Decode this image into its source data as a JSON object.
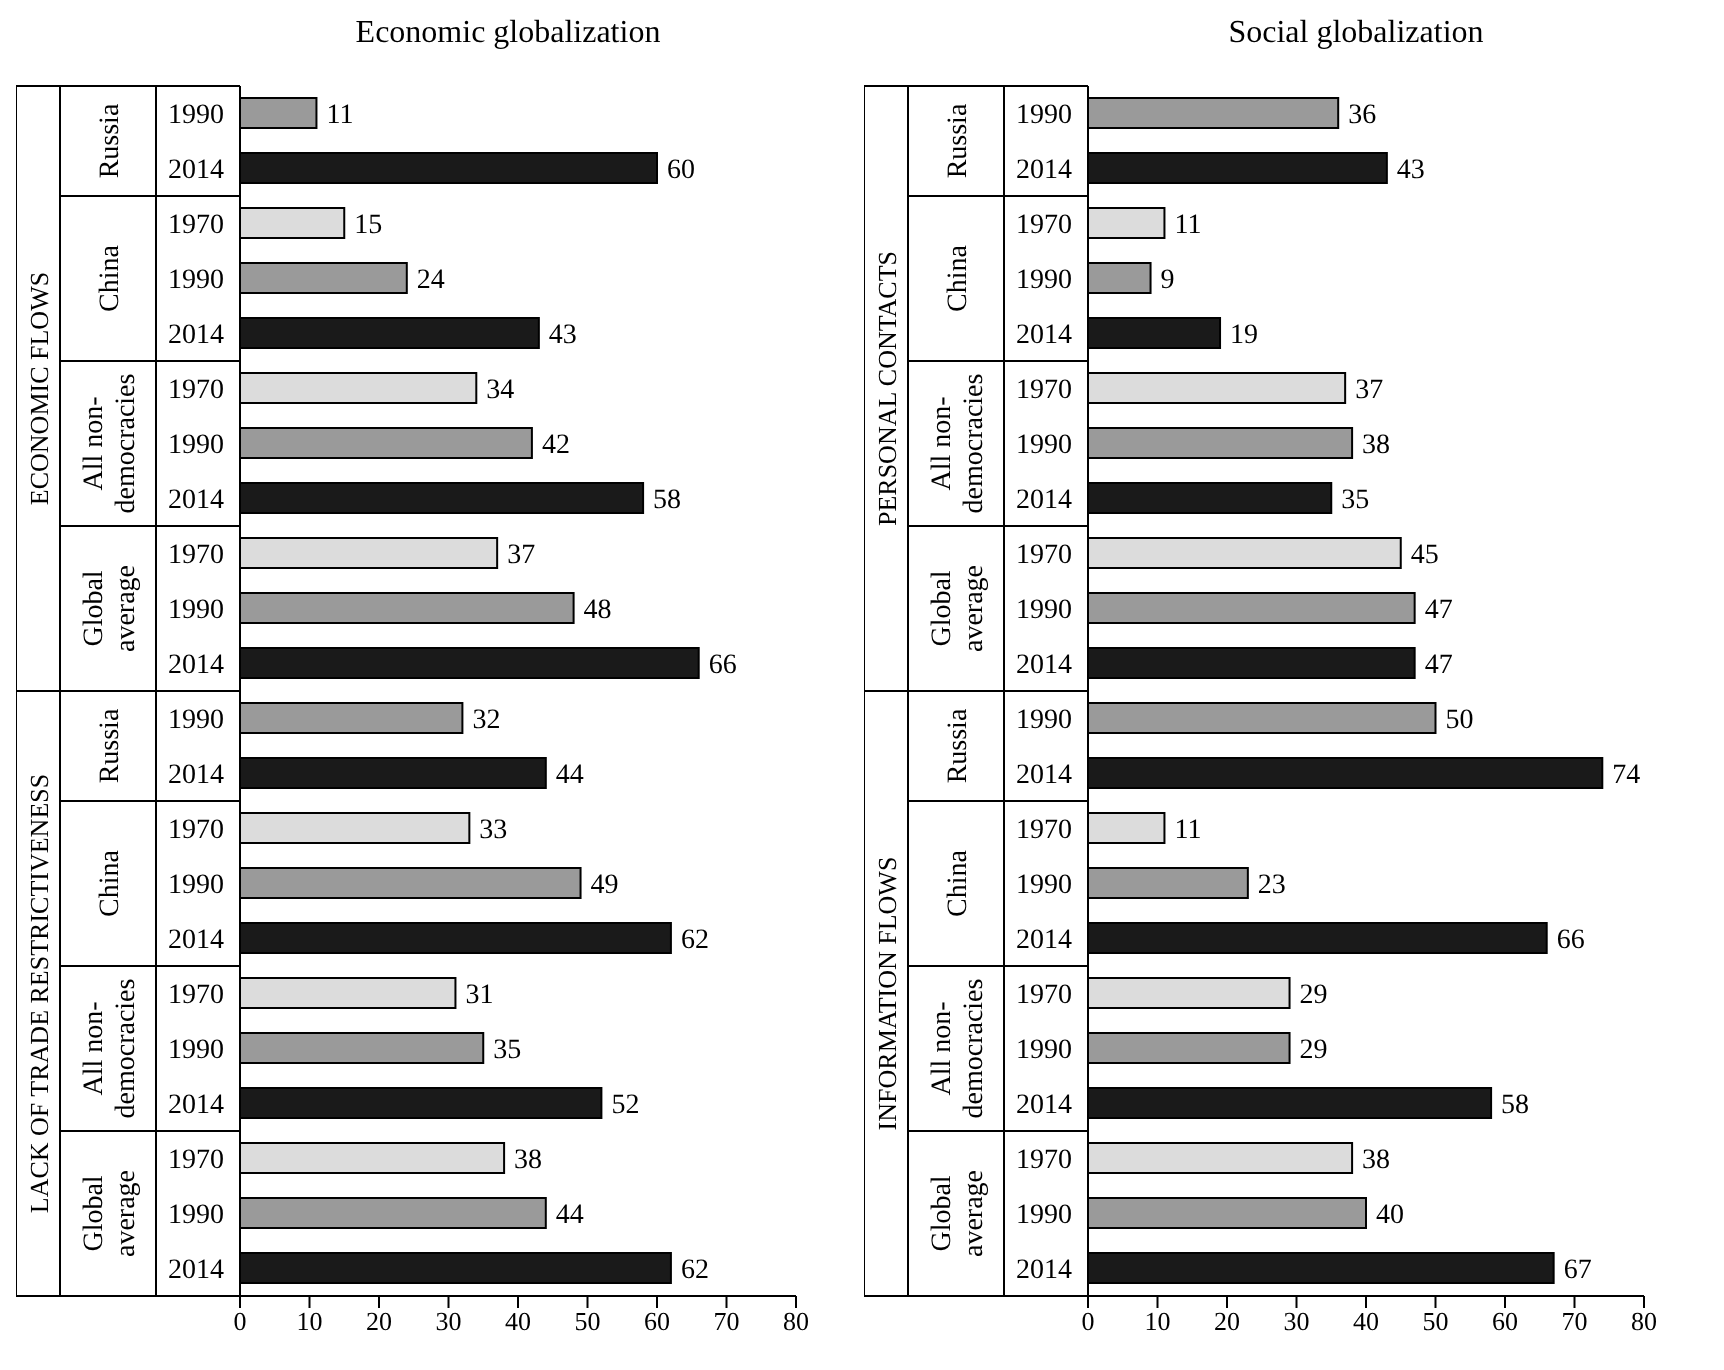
{
  "chart_data": [
    {
      "type": "bar",
      "orientation": "horizontal",
      "title": "Economic globalization",
      "categories": [
        "1990",
        "2014",
        "1970",
        "1990",
        "2014",
        "1970",
        "1990",
        "2014",
        "1970",
        "1990",
        "2014",
        "1990",
        "2014",
        "1970",
        "1990",
        "2014",
        "1970",
        "1990",
        "2014",
        "1970",
        "1990",
        "2014"
      ],
      "values": [
        11,
        60,
        15,
        24,
        43,
        34,
        42,
        58,
        37,
        48,
        66,
        32,
        44,
        33,
        49,
        62,
        31,
        35,
        52,
        38,
        44,
        62
      ],
      "colors": [
        "#9a9a9a",
        "#1a1a1a",
        "#dcdcdc",
        "#9a9a9a",
        "#1a1a1a",
        "#dcdcdc",
        "#9a9a9a",
        "#1a1a1a",
        "#dcdcdc",
        "#9a9a9a",
        "#1a1a1a",
        "#9a9a9a",
        "#1a1a1a",
        "#dcdcdc",
        "#9a9a9a",
        "#1a1a1a",
        "#dcdcdc",
        "#9a9a9a",
        "#1a1a1a",
        "#dcdcdc",
        "#9a9a9a",
        "#1a1a1a"
      ],
      "xlim": [
        0,
        80
      ],
      "xticks": [
        0,
        10,
        20,
        30,
        40,
        50,
        60,
        70,
        80
      ],
      "data_labels": true,
      "legend": false,
      "grid": false,
      "annotations": [
        "ECONOMIC FLOWS",
        "LACK OF TRADE RESTRICTIVENESS",
        "Russia",
        "China",
        "All non-democracies",
        "Global average",
        "Russia",
        "China",
        "All non-democracies",
        "Global average"
      ]
    },
    {
      "type": "bar",
      "orientation": "horizontal",
      "title": "Social globalization",
      "categories": [
        "1990",
        "2014",
        "1970",
        "1990",
        "2014",
        "1970",
        "1990",
        "2014",
        "1970",
        "1990",
        "2014",
        "1990",
        "2014",
        "1970",
        "1990",
        "2014",
        "1970",
        "1990",
        "2014",
        "1970",
        "1990",
        "2014"
      ],
      "values": [
        36,
        43,
        11,
        9,
        19,
        37,
        38,
        35,
        45,
        47,
        47,
        50,
        74,
        11,
        23,
        66,
        29,
        29,
        58,
        38,
        40,
        67
      ],
      "colors": [
        "#9a9a9a",
        "#1a1a1a",
        "#dcdcdc",
        "#9a9a9a",
        "#1a1a1a",
        "#dcdcdc",
        "#9a9a9a",
        "#1a1a1a",
        "#dcdcdc",
        "#9a9a9a",
        "#1a1a1a",
        "#9a9a9a",
        "#1a1a1a",
        "#dcdcdc",
        "#9a9a9a",
        "#1a1a1a",
        "#dcdcdc",
        "#9a9a9a",
        "#1a1a1a",
        "#dcdcdc",
        "#9a9a9a",
        "#1a1a1a"
      ],
      "xlim": [
        0,
        80
      ],
      "xticks": [
        0,
        10,
        20,
        30,
        40,
        50,
        60,
        70,
        80
      ],
      "data_labels": true,
      "legend": false,
      "grid": false,
      "annotations": [
        "PERSONAL CONTACTS",
        "INFORMATION FLOWS",
        "Russia",
        "China",
        "All non-democracies",
        "Global average",
        "Russia",
        "China",
        "All non-democracies",
        "Global average"
      ]
    }
  ]
}
